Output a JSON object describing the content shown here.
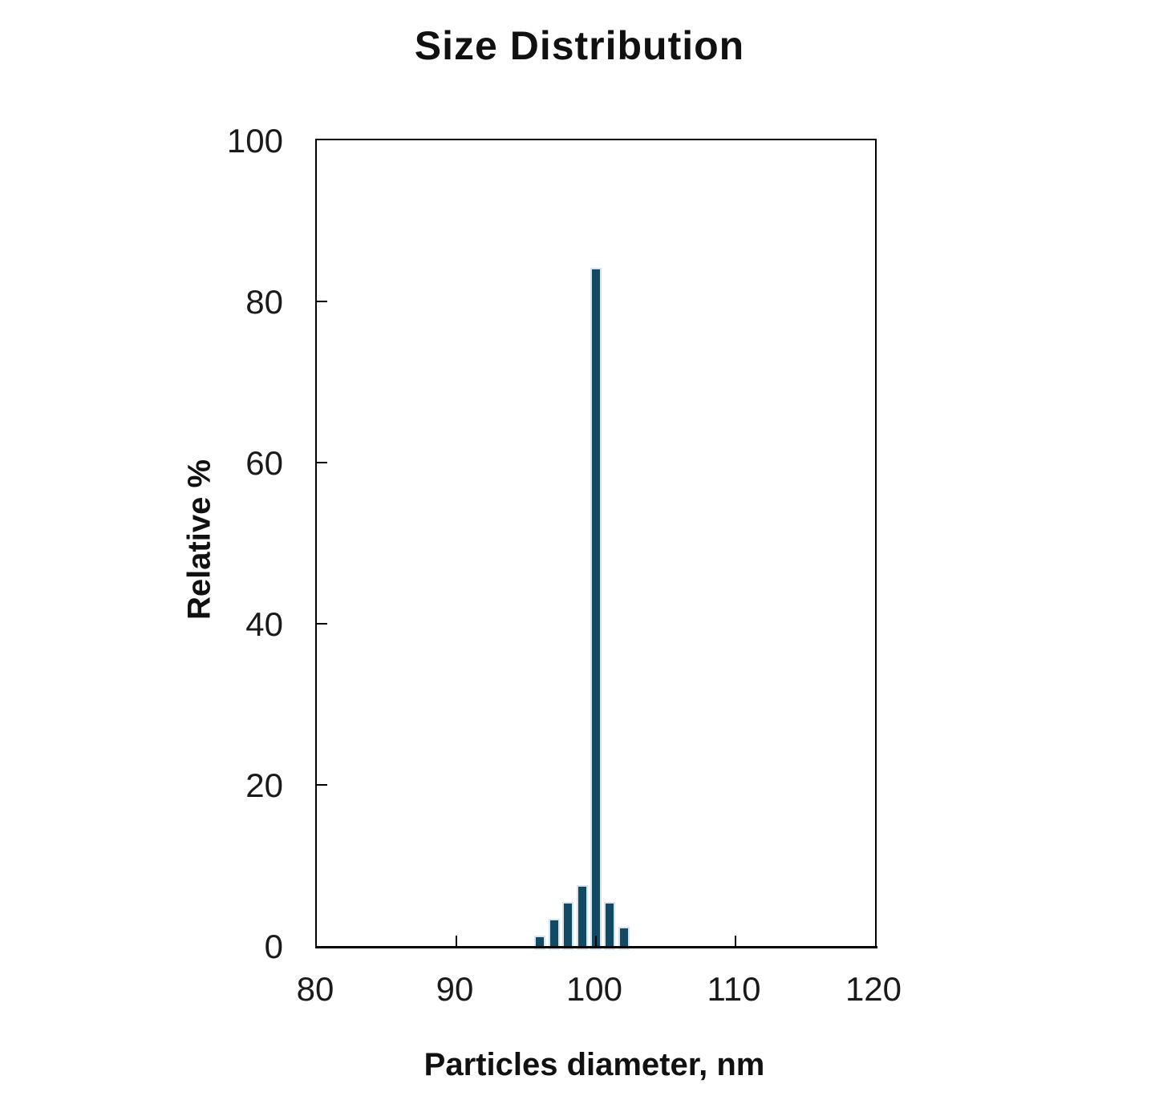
{
  "chart_data": {
    "type": "bar",
    "title": "Size Distribution",
    "xlabel": "Particles diameter, nm",
    "ylabel": "Relative %",
    "x": [
      96,
      97,
      98,
      99,
      100,
      101,
      102
    ],
    "values": [
      1.3,
      3.4,
      5.5,
      7.6,
      84.2,
      5.5,
      2.4
    ],
    "xlim": [
      80,
      120
    ],
    "ylim": [
      0,
      100
    ],
    "x_ticks": [
      80,
      90,
      100,
      110,
      120
    ],
    "y_ticks": [
      0,
      20,
      40,
      60,
      80,
      100
    ],
    "bar_width_units": 0.8,
    "bar_color": "#134a63",
    "bar_edge_color": "#d6e4ee",
    "axis_color": "#000000",
    "text_color": "#111111",
    "grid": false,
    "legend": null
  }
}
